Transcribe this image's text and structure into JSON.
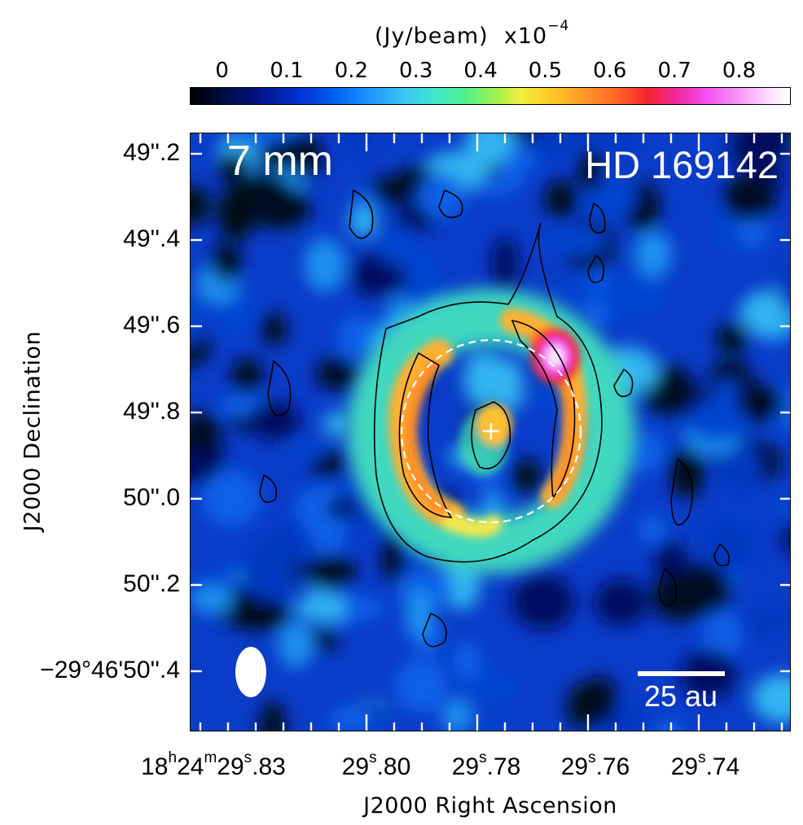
{
  "chart_data": {
    "type": "heatmap",
    "colorbar": {
      "label": "(Jy/beam)",
      "scale_text": "x10",
      "scale_exp": "−4",
      "ticks": [
        "0",
        "0.1",
        "0.2",
        "0.3",
        "0.4",
        "0.5",
        "0.6",
        "0.7",
        "0.8"
      ],
      "range": [
        -0.05,
        0.88
      ]
    },
    "xlabel": "J2000 Right Ascension",
    "ylabel": "J2000 Declination",
    "x_ticks": [
      {
        "label_main": "18",
        "sup1": "h",
        "mid": "24",
        "sup2": "m",
        "end": "29",
        "sup3": "s",
        "tail": ".83",
        "value": 29.83
      },
      {
        "label_main": "29",
        "sup3": "s",
        "tail": ".80",
        "value": 29.8
      },
      {
        "label_main": "29",
        "sup3": "s",
        "tail": ".78",
        "value": 29.78
      },
      {
        "label_main": "29",
        "sup3": "s",
        "tail": ".76",
        "value": 29.76
      },
      {
        "label_main": "29",
        "sup3": "s",
        "tail": ".74",
        "value": 29.74
      }
    ],
    "y_ticks": [
      "49''.2",
      "49''.4",
      "49''.6",
      "49''.8",
      "50''.0",
      "50''.2",
      "−29°46'50''.4"
    ],
    "annotations": {
      "wavelength": "7 mm",
      "source": "HD 169142",
      "scale_bar": "25 au"
    },
    "colors": {
      "ring_contour": "#000000",
      "fit_ellipse": "#ffffff",
      "marker": "#ffffff"
    },
    "features": [
      {
        "name": "ring",
        "shape": "ellipse",
        "peak_flux": 0.55
      },
      {
        "name": "bright-clump-nw",
        "peak_flux": 0.85
      },
      {
        "name": "central-emission",
        "peak_flux": 0.5
      }
    ]
  }
}
